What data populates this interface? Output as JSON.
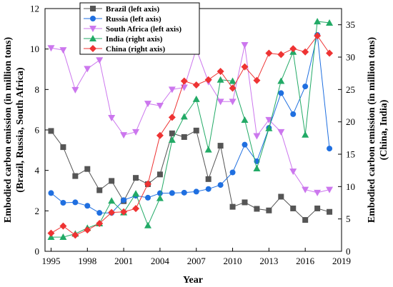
{
  "chart_data": {
    "type": "line",
    "xlabel": "Year",
    "ylabel_left": [
      "Embodied carbon emission (in million tons)",
      "(Brazil, Russia, South Africa)"
    ],
    "ylabel_right": [
      "Embodied carbon emission (in million tons)",
      "(China, India)"
    ],
    "xlim": [
      1994.5,
      2019
    ],
    "ylim_left": [
      0,
      12
    ],
    "ylim_right": [
      0,
      37.5
    ],
    "x_ticks": [
      1995,
      1998,
      2001,
      2004,
      2007,
      2010,
      2013,
      2016,
      2019
    ],
    "y_left_ticks": [
      0,
      2,
      4,
      6,
      8,
      10,
      12
    ],
    "y_right_ticks": [
      0,
      5,
      10,
      15,
      20,
      25,
      30,
      35
    ],
    "grid": false,
    "legend_position": "top-left",
    "x": [
      1995,
      1996,
      1997,
      1998,
      1999,
      2000,
      2001,
      2002,
      2003,
      2004,
      2005,
      2006,
      2007,
      2008,
      2009,
      2010,
      2011,
      2012,
      2013,
      2014,
      2015,
      2016,
      2017,
      2018
    ],
    "series": [
      {
        "name": "Brazil (left axis)",
        "axis": "left",
        "color": "#555555",
        "marker": "square",
        "values": [
          5.95,
          5.15,
          3.72,
          4.07,
          3.02,
          3.48,
          2.48,
          3.63,
          3.32,
          3.8,
          5.83,
          5.65,
          5.97,
          3.57,
          5.22,
          2.2,
          2.42,
          2.1,
          2.02,
          2.7,
          2.12,
          1.55,
          2.12,
          1.95
        ]
      },
      {
        "name": "Russia (left axis)",
        "axis": "left",
        "color": "#1f6fe0",
        "marker": "circle",
        "values": [
          2.88,
          2.4,
          2.42,
          2.25,
          1.9,
          1.9,
          2.53,
          2.75,
          2.65,
          2.87,
          2.88,
          2.9,
          2.95,
          3.08,
          3.28,
          3.9,
          5.27,
          4.45,
          6.1,
          7.82,
          6.78,
          8.15,
          10.7,
          5.08
        ]
      },
      {
        "name": "South Africa (left axis)",
        "axis": "left",
        "color": "#cc77ee",
        "marker": "triangle-down",
        "values": [
          10.05,
          9.95,
          7.98,
          9.02,
          9.45,
          6.6,
          5.75,
          5.9,
          7.3,
          7.2,
          8.0,
          8.1,
          10.0,
          8.38,
          7.4,
          7.4,
          10.2,
          5.7,
          6.5,
          5.9,
          3.95,
          3.05,
          2.9,
          3.05
        ]
      },
      {
        "name": "India (right axis)",
        "axis": "right",
        "color": "#22aa66",
        "marker": "triangle-up",
        "values": [
          2.2,
          2.2,
          2.7,
          3.6,
          4.3,
          7.8,
          6.0,
          8.9,
          4.0,
          8.2,
          17.2,
          20.8,
          23.5,
          15.7,
          26.5,
          26.3,
          20.3,
          12.8,
          19.0,
          26.3,
          30.8,
          18.0,
          35.5,
          35.3
        ]
      },
      {
        "name": "China (right axis)",
        "axis": "right",
        "color": "#ee3333",
        "marker": "diamond",
        "values": [
          2.8,
          3.9,
          2.5,
          3.3,
          4.3,
          6.0,
          6.1,
          6.6,
          10.4,
          17.9,
          20.7,
          26.3,
          25.7,
          26.5,
          27.8,
          25.2,
          28.5,
          26.4,
          30.6,
          30.4,
          31.3,
          30.8,
          33.3,
          30.6
        ]
      }
    ]
  }
}
